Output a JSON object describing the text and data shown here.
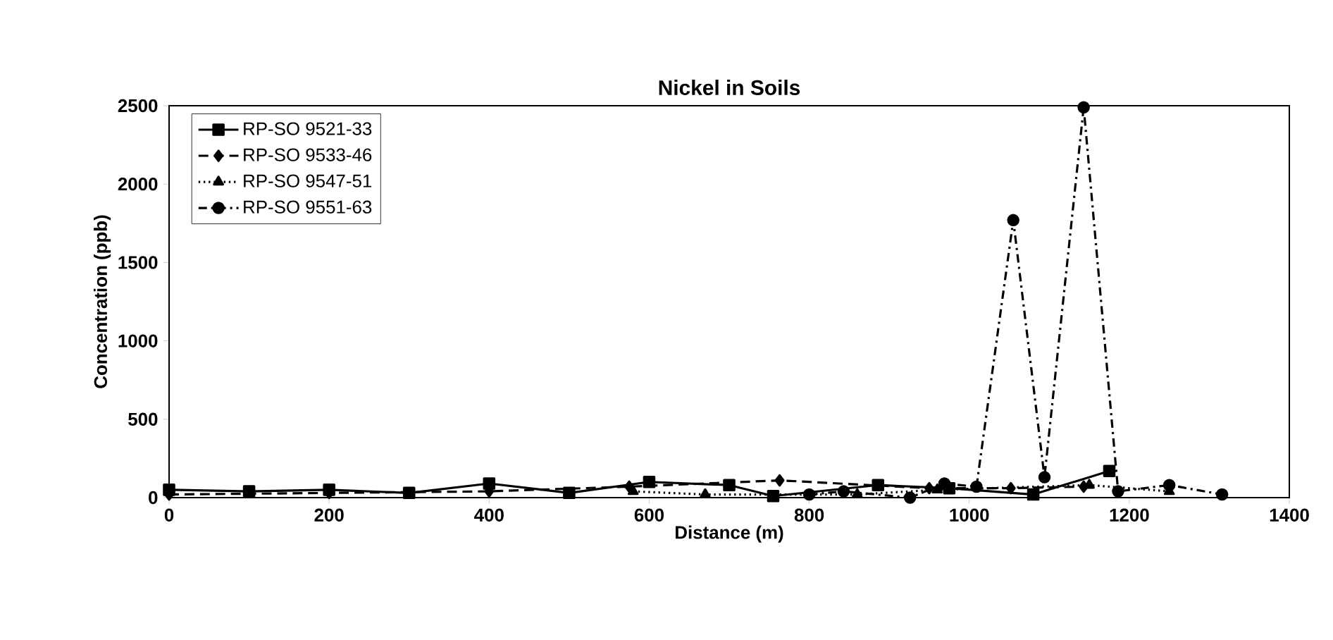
{
  "chart_data": {
    "type": "line",
    "title": "Nickel in Soils",
    "xlabel": "Distance (m)",
    "ylabel": "Concentration (ppb)",
    "xlim": [
      0,
      1400
    ],
    "xticks": [
      0,
      200,
      400,
      600,
      800,
      1000,
      1200,
      1400
    ],
    "ylim": [
      0,
      2500
    ],
    "yticks": [
      0,
      500,
      1000,
      1500,
      2000,
      2500
    ],
    "legend": "top left",
    "grid": false,
    "series": [
      {
        "name": "RP-SO 9521-33",
        "color": "#000000",
        "marker": "square",
        "line_style": "solid",
        "x": [
          0,
          100,
          200,
          300,
          400,
          500,
          600,
          700,
          755,
          886,
          975,
          1080,
          1175
        ],
        "values": [
          50,
          40,
          50,
          30,
          90,
          30,
          100,
          80,
          10,
          80,
          60,
          20,
          170
        ]
      },
      {
        "name": "RP-SO 9533-46",
        "color": "#000000",
        "marker": "diamond",
        "line_style": "dashed",
        "x": [
          0,
          200,
          400,
          575,
          763,
          950,
          1052,
          1143
        ],
        "values": [
          20,
          30,
          40,
          70,
          110,
          60,
          60,
          70
        ]
      },
      {
        "name": "RP-SO 9547-51",
        "color": "#000000",
        "marker": "triangle",
        "line_style": "dotted",
        "x": [
          580,
          670,
          860,
          960,
          1150,
          1250
        ],
        "values": [
          40,
          20,
          20,
          50,
          80,
          40
        ]
      },
      {
        "name": "RP-SO 9551-63",
        "color": "#000000",
        "marker": "circle",
        "line_style": "dashdot",
        "x": [
          800,
          843,
          926,
          969,
          1009,
          1055,
          1094,
          1143,
          1186,
          1250,
          1316
        ],
        "values": [
          20,
          40,
          0,
          90,
          70,
          1770,
          130,
          2490,
          40,
          80,
          20
        ]
      }
    ]
  }
}
